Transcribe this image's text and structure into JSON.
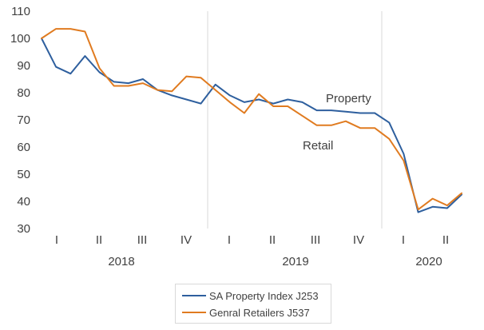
{
  "chart_data": {
    "type": "line",
    "ylim": [
      30,
      110
    ],
    "yticks": [
      30,
      40,
      50,
      60,
      70,
      80,
      90,
      100,
      110
    ],
    "quarter_labels": [
      "I",
      "II",
      "III",
      "IV",
      "I",
      "II",
      "III",
      "IV",
      "I",
      "II"
    ],
    "year_labels": [
      "2018",
      "2019",
      "2020"
    ],
    "annotations": [
      "Property",
      "Retail"
    ],
    "grid": false,
    "legend_position": "bottom",
    "series": [
      {
        "name": "SA Property Index J253",
        "color": "#2e5f9e",
        "values": [
          100,
          89.5,
          87,
          93.5,
          87.5,
          84,
          83.5,
          85,
          81,
          79,
          77.5,
          76,
          83,
          79,
          76.5,
          77.5,
          76,
          77.5,
          76.5,
          73.5,
          73.5,
          73,
          72.5,
          72.5,
          69,
          57.5,
          36,
          38,
          37.5,
          42.5
        ]
      },
      {
        "name": "Genral Retailers J537",
        "color": "#e07b20",
        "values": [
          100,
          103.5,
          103.5,
          102.5,
          89,
          82.5,
          82.5,
          83.5,
          81,
          80.5,
          86,
          85.5,
          81,
          76.5,
          72.5,
          79.5,
          75,
          75,
          71.5,
          68,
          68,
          69.5,
          67,
          67,
          63,
          55,
          37,
          41,
          38.5,
          43
        ]
      }
    ]
  }
}
